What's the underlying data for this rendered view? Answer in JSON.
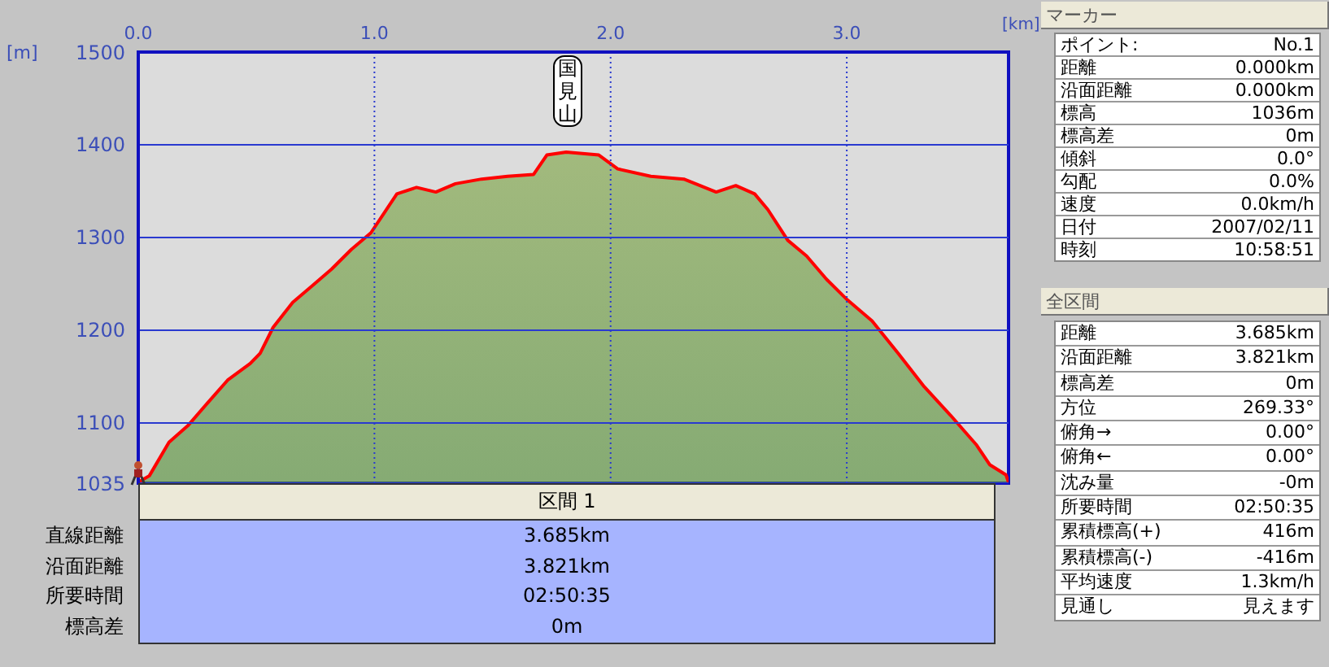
{
  "chart_data": {
    "type": "area",
    "xlabel": "[km]",
    "ylabel": "[m]",
    "x": [
      0,
      0.047,
      0.13,
      0.21,
      0.295,
      0.378,
      0.474,
      0.516,
      0.571,
      0.654,
      0.737,
      0.819,
      0.902,
      0.985,
      1.04,
      1.095,
      1.178,
      1.26,
      1.343,
      1.454,
      1.564,
      1.674,
      1.73,
      1.812,
      1.95,
      2.03,
      2.17,
      2.31,
      2.447,
      2.53,
      2.61,
      2.666,
      2.75,
      2.83,
      2.914,
      2.997,
      3.107,
      3.218,
      3.328,
      3.44,
      3.55,
      3.605,
      3.674,
      3.685
    ],
    "series": [
      {
        "color": "#7ba33e",
        "values": [
          1036,
          1043,
          1079,
          1097,
          1122,
          1146,
          1164,
          1175,
          1203,
          1230,
          1248,
          1266,
          1287,
          1305,
          1326,
          1347,
          1354,
          1349,
          1358,
          1363,
          1366,
          1368,
          1389,
          1392,
          1389,
          1374,
          1366,
          1363,
          1349,
          1356,
          1347,
          1330,
          1297,
          1280,
          1255,
          1234,
          1210,
          1175,
          1139,
          1108,
          1076,
          1055,
          1044,
          1036
        ]
      }
    ],
    "xlim": [
      0,
      3.685
    ],
    "ylim": [
      1035,
      1500
    ],
    "xticks": [
      {
        "value": 0,
        "label": "0.0"
      },
      {
        "value": 1,
        "label": "1.0"
      },
      {
        "value": 2,
        "label": "2.0"
      },
      {
        "value": 3,
        "label": "3.0"
      }
    ],
    "yticks": [
      1035,
      1100,
      1200,
      1300,
      1400,
      1500
    ],
    "grid": true,
    "annotations": [
      {
        "text": "国見山",
        "x": 1.812
      },
      "マーカー",
      "ポイント:",
      "No.1",
      "距離",
      "0.000km",
      "沿面距離",
      "0.000km",
      "標高",
      "1036m",
      "標高差",
      "0m",
      "傾斜",
      "0.0°",
      "勾配",
      "0.0%",
      "速度",
      "0.0km/h",
      "日付",
      "2007/02/11",
      "時刻",
      "10:58:51",
      "全区間",
      "距離",
      "3.685km",
      "沿面距離",
      "3.821km",
      "標高差",
      "0m",
      "方位",
      "269.33°",
      "俯角→",
      "0.00°",
      "俯角←",
      "0.00°",
      "沈み量",
      "-0m",
      "所要時間",
      "02:50:35",
      "累積標高(+)",
      "416m",
      "累積標高(-)",
      "-416m",
      "平均速度",
      "1.3km/h",
      "見通し",
      "見えます",
      "区間 1",
      "直線距離",
      "3.685km",
      "沿面距離",
      "3.821km",
      "所要時間",
      "02:50:35",
      "標高差",
      "0m"
    ]
  }
}
